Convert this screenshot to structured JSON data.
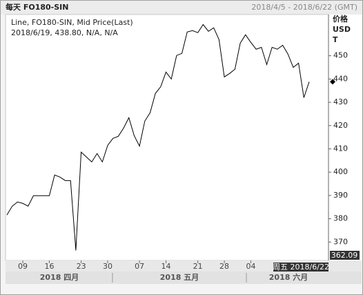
{
  "header": {
    "title": "每天 FO180-SIN",
    "range": "2018/4/5 - 2018/6/22 (GMT)"
  },
  "chart_data": {
    "type": "line",
    "legend_lines": [
      "Line, FO180-SIN, Mid Price(Last)",
      "2018/6/19, 438.80, N/A, N/A"
    ],
    "y_label": [
      "价格",
      "USD",
      "T"
    ],
    "categories": [
      null,
      null,
      null,
      "09",
      null,
      null,
      null,
      null,
      "16",
      null,
      null,
      null,
      null,
      null,
      "23",
      null,
      null,
      null,
      null,
      "30",
      null,
      null,
      null,
      null,
      null,
      "07",
      null,
      null,
      null,
      null,
      "14",
      null,
      null,
      null,
      null,
      null,
      "21",
      null,
      null,
      null,
      null,
      "28",
      null,
      null,
      null,
      null,
      "04",
      null,
      null,
      null,
      null,
      null,
      null,
      null,
      null,
      null,
      null,
      null
    ],
    "x_groups": [
      "2018 四月",
      "2018 五月",
      "2018 六月"
    ],
    "cursor_label": "周五 2018/6/22",
    "series": [
      {
        "name": "FO180-SIN",
        "color": "#000000",
        "values": [
          381.6,
          385.4,
          387.2,
          386.6,
          385.4,
          389.9,
          389.9,
          389.9,
          389.9,
          398.8,
          397.9,
          396.4,
          396.4,
          366.4,
          408.6,
          406.5,
          404.4,
          408.0,
          404.4,
          411.5,
          414.5,
          415.4,
          418.9,
          423.4,
          415.7,
          411.2,
          421.9,
          425.5,
          433.8,
          436.7,
          443.0,
          440.0,
          450.1,
          451.0,
          460.2,
          460.8,
          459.9,
          463.4,
          460.5,
          462.0,
          456.9,
          440.9,
          442.4,
          444.2,
          455.4,
          459.0,
          455.7,
          452.8,
          453.6,
          446.2,
          453.6,
          452.8,
          454.5,
          450.7,
          445.0,
          446.8,
          432.0,
          438.8
        ]
      }
    ],
    "ylim": [
      362.09,
      468
    ],
    "yticks": [
      370,
      380,
      390,
      400,
      410,
      420,
      430,
      440,
      450
    ]
  }
}
